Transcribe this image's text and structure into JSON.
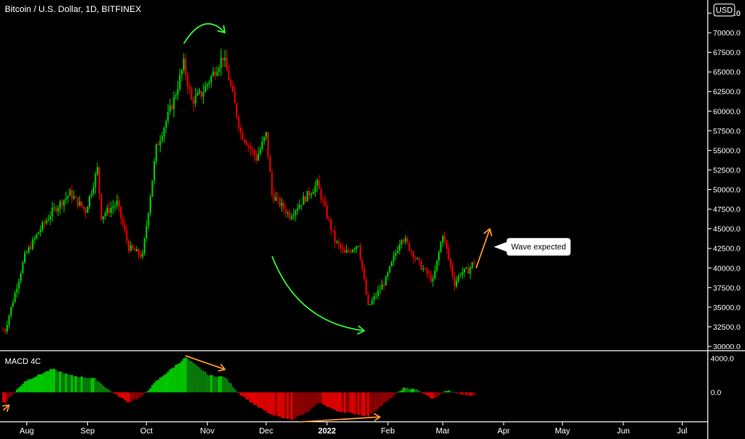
{
  "header": {
    "symbol_title": "Bitcoin / U.S. Dollar, 1D, BITFINEX",
    "currency_button": "USD"
  },
  "indicator": {
    "name": "MACD 4C",
    "scale_top": "4000.0",
    "scale_zero": "0.0"
  },
  "annotation": {
    "callout_text": "Wave expected"
  },
  "colors": {
    "up": "#00c800",
    "down": "#e00000",
    "up_dark": "#0a7a0a",
    "down_dark": "#8a0000",
    "arrow_green": "#33ff33",
    "arrow_orange": "#ff9933",
    "axis_text": "#ffffff",
    "separator": "#ffffff"
  },
  "chart_data": [
    {
      "type": "candlestick",
      "title": "Bitcoin / U.S. Dollar, 1D, BITFINEX",
      "x_axis_ticks": [
        "Aug",
        "Sep",
        "Oct",
        "Nov",
        "Dec",
        "2022",
        "Feb",
        "Mar",
        "Apr",
        "May",
        "Jun",
        "Jul"
      ],
      "y_axis_ticks": [
        "30000.0",
        "32500.0",
        "35000.0",
        "37500.0",
        "40000.0",
        "42500.0",
        "45000.0",
        "47500.0",
        "50000.0",
        "52500.0",
        "55000.0",
        "57500.0",
        "60000.0",
        "62500.0",
        "65000.0",
        "67500.0",
        "70000.0",
        "72500.0"
      ],
      "ylim": [
        30000,
        72500
      ],
      "price_anchors": [
        {
          "date": "2021-07-21",
          "close": 32100
        },
        {
          "date": "2021-07-31",
          "close": 41500
        },
        {
          "date": "2021-08-07",
          "close": 44600
        },
        {
          "date": "2021-08-14",
          "close": 47200
        },
        {
          "date": "2021-08-23",
          "close": 49500
        },
        {
          "date": "2021-08-31",
          "close": 47300
        },
        {
          "date": "2021-09-06",
          "close": 52600
        },
        {
          "date": "2021-09-08",
          "close": 46600
        },
        {
          "date": "2021-09-16",
          "close": 48300
        },
        {
          "date": "2021-09-22",
          "close": 42600
        },
        {
          "date": "2021-09-29",
          "close": 41500
        },
        {
          "date": "2021-10-06",
          "close": 55300
        },
        {
          "date": "2021-10-15",
          "close": 61500
        },
        {
          "date": "2021-10-20",
          "close": 66000
        },
        {
          "date": "2021-10-24",
          "close": 61300
        },
        {
          "date": "2021-10-29",
          "close": 62200
        },
        {
          "date": "2021-11-09",
          "close": 67000
        },
        {
          "date": "2021-11-12",
          "close": 64200
        },
        {
          "date": "2021-11-18",
          "close": 57300
        },
        {
          "date": "2021-11-26",
          "close": 54000
        },
        {
          "date": "2021-12-01",
          "close": 57000
        },
        {
          "date": "2021-12-04",
          "close": 49400
        },
        {
          "date": "2021-12-13",
          "close": 46700
        },
        {
          "date": "2021-12-21",
          "close": 49000
        },
        {
          "date": "2021-12-27",
          "close": 50700
        },
        {
          "date": "2022-01-05",
          "close": 43500
        },
        {
          "date": "2022-01-10",
          "close": 41800
        },
        {
          "date": "2022-01-17",
          "close": 43100
        },
        {
          "date": "2022-01-22",
          "close": 35000
        },
        {
          "date": "2022-01-31",
          "close": 38500
        },
        {
          "date": "2022-02-08",
          "close": 44000
        },
        {
          "date": "2022-02-10",
          "close": 43400
        },
        {
          "date": "2022-02-17",
          "close": 40500
        },
        {
          "date": "2022-02-24",
          "close": 38300
        },
        {
          "date": "2022-03-01",
          "close": 44400
        },
        {
          "date": "2022-03-07",
          "close": 38000
        },
        {
          "date": "2022-03-10",
          "close": 39400
        },
        {
          "date": "2022-03-14",
          "close": 39700
        },
        {
          "date": "2022-03-17",
          "close": 40900
        }
      ],
      "annotations": [
        {
          "type": "curved-arrow",
          "color": "green",
          "from": {
            "date": "2021-10-20",
            "price": 68600
          },
          "to": {
            "date": "2021-11-10",
            "price": 70000
          }
        },
        {
          "type": "curved-arrow",
          "color": "green",
          "from": {
            "date": "2021-12-04",
            "price": 41500
          },
          "to": {
            "date": "2022-01-20",
            "price": 32000
          }
        },
        {
          "type": "arrow",
          "color": "orange",
          "from": {
            "date": "2022-03-18",
            "price": 40000
          },
          "to": {
            "date": "2022-03-25",
            "price": 45000
          }
        },
        {
          "type": "callout",
          "text": "Wave expected",
          "anchor": {
            "date": "2022-03-27",
            "price": 42700
          }
        }
      ]
    },
    {
      "type": "bar",
      "title": "MACD 4C",
      "y_axis_ticks": [
        "4000.0",
        "0.0"
      ],
      "ylim": [
        -3800,
        4700
      ],
      "histogram_anchors": [
        {
          "date": "2021-07-21",
          "value": -1200
        },
        {
          "date": "2021-07-31",
          "value": 1300
        },
        {
          "date": "2021-08-14",
          "value": 2750
        },
        {
          "date": "2021-08-23",
          "value": 2000
        },
        {
          "date": "2021-09-05",
          "value": 1600
        },
        {
          "date": "2021-09-12",
          "value": 250
        },
        {
          "date": "2021-09-22",
          "value": -1200
        },
        {
          "date": "2021-09-29",
          "value": -450
        },
        {
          "date": "2021-10-06",
          "value": 1300
        },
        {
          "date": "2021-10-15",
          "value": 3000
        },
        {
          "date": "2021-10-21",
          "value": 4100
        },
        {
          "date": "2021-11-02",
          "value": 2000
        },
        {
          "date": "2021-11-10",
          "value": 1800
        },
        {
          "date": "2021-11-17",
          "value": -100
        },
        {
          "date": "2021-11-26",
          "value": -1600
        },
        {
          "date": "2021-12-04",
          "value": -2700
        },
        {
          "date": "2021-12-14",
          "value": -3200
        },
        {
          "date": "2021-12-22",
          "value": -2400
        },
        {
          "date": "2021-12-28",
          "value": -1200
        },
        {
          "date": "2022-01-06",
          "value": -2200
        },
        {
          "date": "2022-01-22",
          "value": -2800
        },
        {
          "date": "2022-02-01",
          "value": -1000
        },
        {
          "date": "2022-02-09",
          "value": 500
        },
        {
          "date": "2022-02-15",
          "value": 400
        },
        {
          "date": "2022-02-24",
          "value": -800
        },
        {
          "date": "2022-03-03",
          "value": 200
        },
        {
          "date": "2022-03-10",
          "value": -200
        },
        {
          "date": "2022-03-17",
          "value": -400
        }
      ],
      "annotations": [
        {
          "type": "arrow",
          "color": "orange",
          "from": {
            "date": "2021-10-21",
            "value": 4300
          },
          "to": {
            "date": "2021-11-10",
            "value": 2700
          }
        },
        {
          "type": "arrow",
          "color": "orange",
          "from": {
            "date": "2021-12-18",
            "value": -3500
          },
          "to": {
            "date": "2022-01-28",
            "value": -2900
          }
        },
        {
          "type": "arrow",
          "color": "orange",
          "from": {
            "date": "2021-07-20",
            "value": -2100
          },
          "to": {
            "date": "2021-07-23",
            "value": -1500
          }
        }
      ]
    }
  ]
}
